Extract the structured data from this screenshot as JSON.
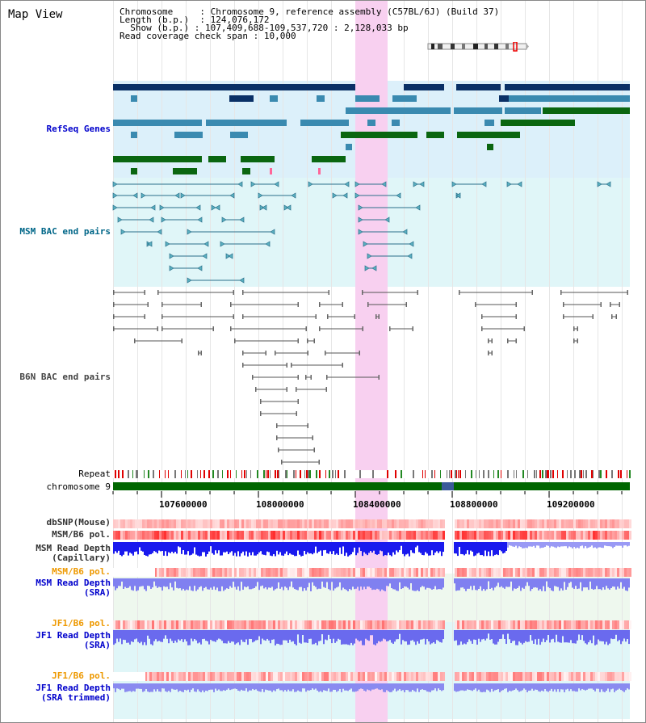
{
  "title": "Map View",
  "info": {
    "chromosome_label": "Chromosome",
    "chromosome_value": "Chromosome 9, reference assembly (C57BL/6J) (Build 37)",
    "length_label": "Length (b.p.)",
    "length_value": "124,076,172",
    "show_label": "Show (b.p.)",
    "show_value": "107,409,688-109,537,720 : 2,128,033 bp",
    "coverage_label": "Read coverage check span",
    "coverage_value": "10,000"
  },
  "tracks": {
    "refseq": "RefSeq Genes",
    "msm_bac": "MSM BAC end pairs",
    "b6n_bac": "B6N BAC end pairs",
    "repeat": "Repeat",
    "chromosome": "chromosome 9",
    "dbsnp": "dbSNP(Mouse)",
    "msm_b6_pol_1": "MSM/B6 pol.",
    "msm_depth_cap_1": "MSM Read Depth",
    "msm_depth_cap_2": "(Capillary)",
    "msm_b6_pol_2": "MSM/B6 pol.",
    "msm_depth_sra_1": "MSM Read Depth",
    "msm_depth_sra_2": "(SRA)",
    "jf1_b6_pol_1": "JF1/B6 pol.",
    "jf1_depth_sra_1": "JF1 Read Depth",
    "jf1_depth_sra_2": "(SRA)",
    "jf1_b6_pol_2": "JF1/B6 pol.",
    "jf1_depth_trim_1": "JF1 Read Depth",
    "jf1_depth_trim_2": "(SRA trimmed)"
  },
  "axis_ticks": [
    "107600000",
    "108000000",
    "108400000",
    "108800000",
    "109200000"
  ],
  "colors": {
    "refseq_label": "#0000cc",
    "msm_label": "#006688",
    "b6n_label": "#444444",
    "orange_label": "#ee9900",
    "blue_label": "#0000cc",
    "gray_label": "#333333",
    "highlight": "#f8d0f0",
    "chromosome_bar": "#006600"
  }
}
